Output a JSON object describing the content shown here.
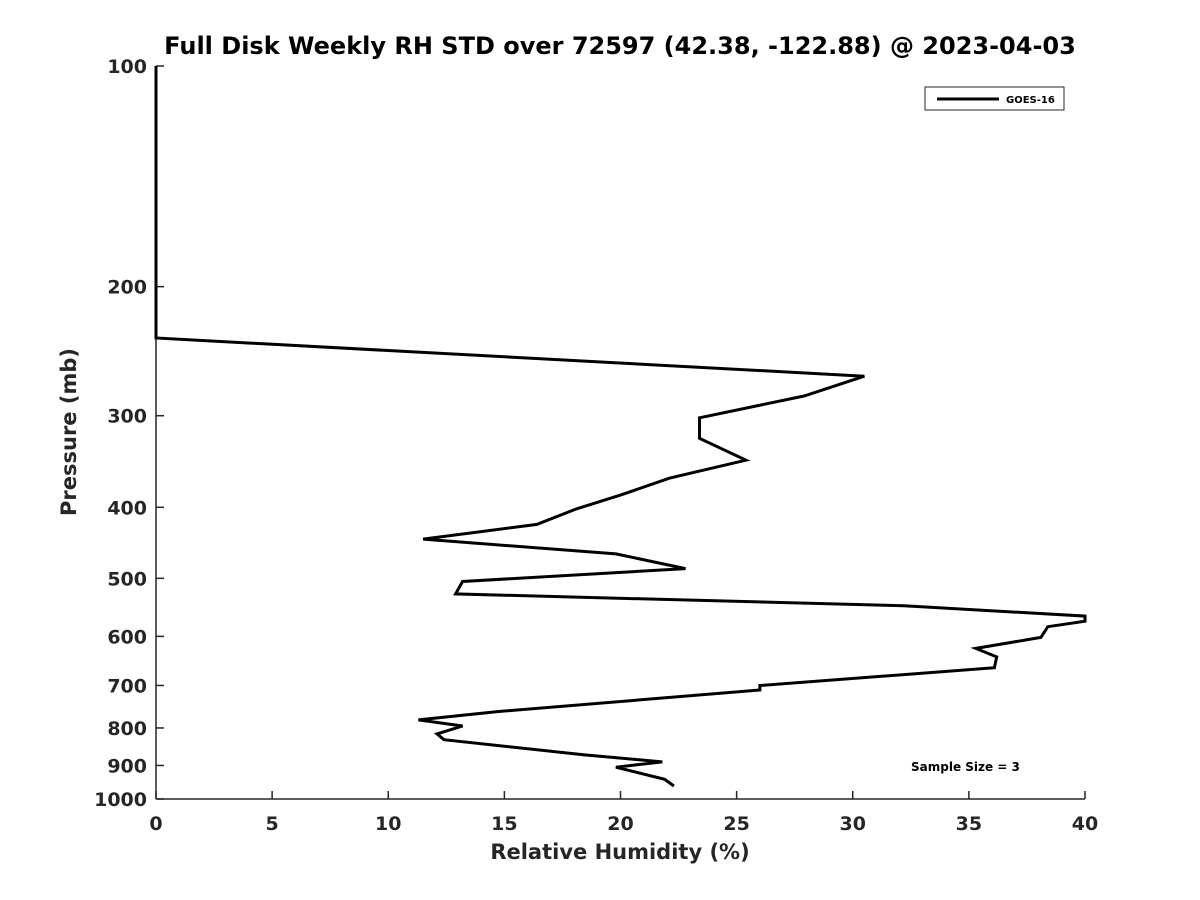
{
  "chart_data": {
    "type": "line",
    "title": "Full Disk Weekly RH STD over 72597 (42.38, -122.88) @ 2023-04-03",
    "xlabel": "Relative Humidity (%)",
    "ylabel": "Pressure (mb)",
    "xlim": [
      0,
      40
    ],
    "ylim": [
      100,
      1000
    ],
    "y_scale": "log",
    "y_inverted": true,
    "x_ticks": [
      "0",
      "5",
      "10",
      "15",
      "20",
      "25",
      "30",
      "35",
      "40"
    ],
    "y_ticks": [
      "100",
      "200",
      "300",
      "400",
      "500",
      "600",
      "700",
      "800",
      "900",
      "1000"
    ],
    "grid": false,
    "legend_position": "top-right",
    "annotation": "Sample Size = 3",
    "line_color": "#000000",
    "series": [
      {
        "name": "GOES-16",
        "x": [
          0,
          0,
          0,
          0,
          0,
          0,
          0,
          30.5,
          27.9,
          23.4,
          23.4,
          25.4,
          22.1,
          20.0,
          18.1,
          16.4,
          11.5,
          19.8,
          22.8,
          13.2,
          12.9,
          32.2,
          40.0,
          40.0,
          38.4,
          38.1,
          35.3,
          36.2,
          36.1,
          26.0,
          26.0,
          14.7,
          11.3,
          13.2,
          12.1,
          12.4,
          18.4,
          21.8,
          19.8,
          21.9,
          22.3
        ],
        "y": [
          100,
          120,
          140,
          160,
          180,
          200,
          235,
          265,
          282,
          302,
          322,
          345,
          365,
          385,
          402,
          422,
          442,
          463,
          485,
          505,
          525,
          545,
          563,
          572,
          582,
          602,
          623,
          640,
          662,
          700,
          710,
          760,
          780,
          795,
          815,
          830,
          870,
          890,
          905,
          940,
          960
        ]
      }
    ]
  }
}
